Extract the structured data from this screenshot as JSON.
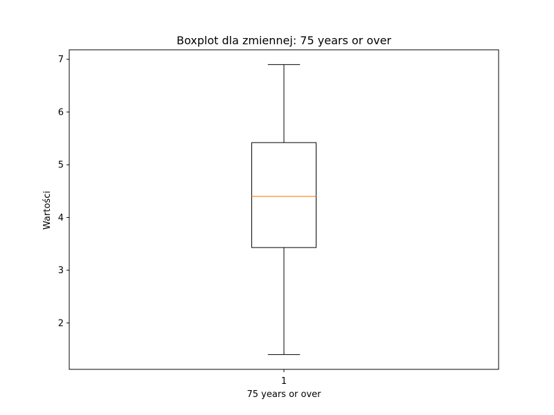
{
  "chart_data": {
    "type": "boxplot",
    "title": "Boxplot dla zmiennej: 75 years or over",
    "xlabel": "75 years or over",
    "ylabel": "Wartości",
    "categories": [
      "1"
    ],
    "y_ticks": [
      2,
      3,
      4,
      5,
      6,
      7
    ],
    "ylim": [
      1.12,
      7.18
    ],
    "boxes": [
      {
        "category": "1",
        "whisker_low": 1.4,
        "q1": 3.43,
        "median": 4.4,
        "q3": 5.42,
        "whisker_high": 6.9
      }
    ],
    "grid": false,
    "colors": {
      "box": "#000000",
      "median": "#ff7f0e",
      "whisker": "#000000"
    }
  }
}
